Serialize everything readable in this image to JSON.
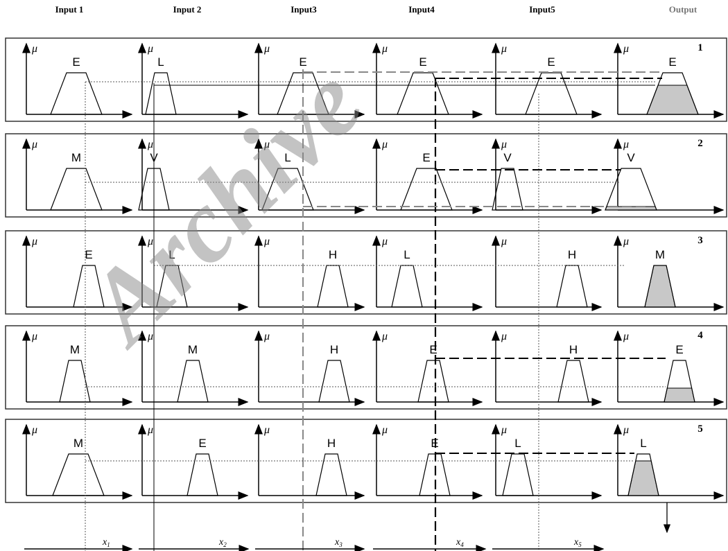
{
  "headers": [
    "Input 1",
    "Input 2",
    "Input3",
    "Input4",
    "Input5",
    "Output"
  ],
  "axis_symbol": "μ",
  "watermark": "Archive",
  "rules": [
    {
      "number": "1",
      "labels": [
        "E",
        "L",
        "E",
        "E",
        "E",
        "E"
      ]
    },
    {
      "number": "2",
      "labels": [
        "M",
        "V",
        "L",
        "E",
        "V",
        "V"
      ]
    },
    {
      "number": "3",
      "labels": [
        "E",
        "L",
        "H",
        "L",
        "H",
        "M"
      ]
    },
    {
      "number": "4",
      "labels": [
        "M",
        "M",
        "H",
        "E",
        "H",
        "E"
      ]
    },
    {
      "number": "5",
      "labels": [
        "M",
        "E",
        "H",
        "E",
        "L",
        "L"
      ]
    }
  ],
  "inputs": [
    {
      "symbol": "x",
      "index": "1"
    },
    {
      "symbol": "x",
      "index": "2"
    },
    {
      "symbol": "x",
      "index": "3"
    },
    {
      "symbol": "x",
      "index": "4"
    },
    {
      "symbol": "x",
      "index": "5"
    }
  ]
}
